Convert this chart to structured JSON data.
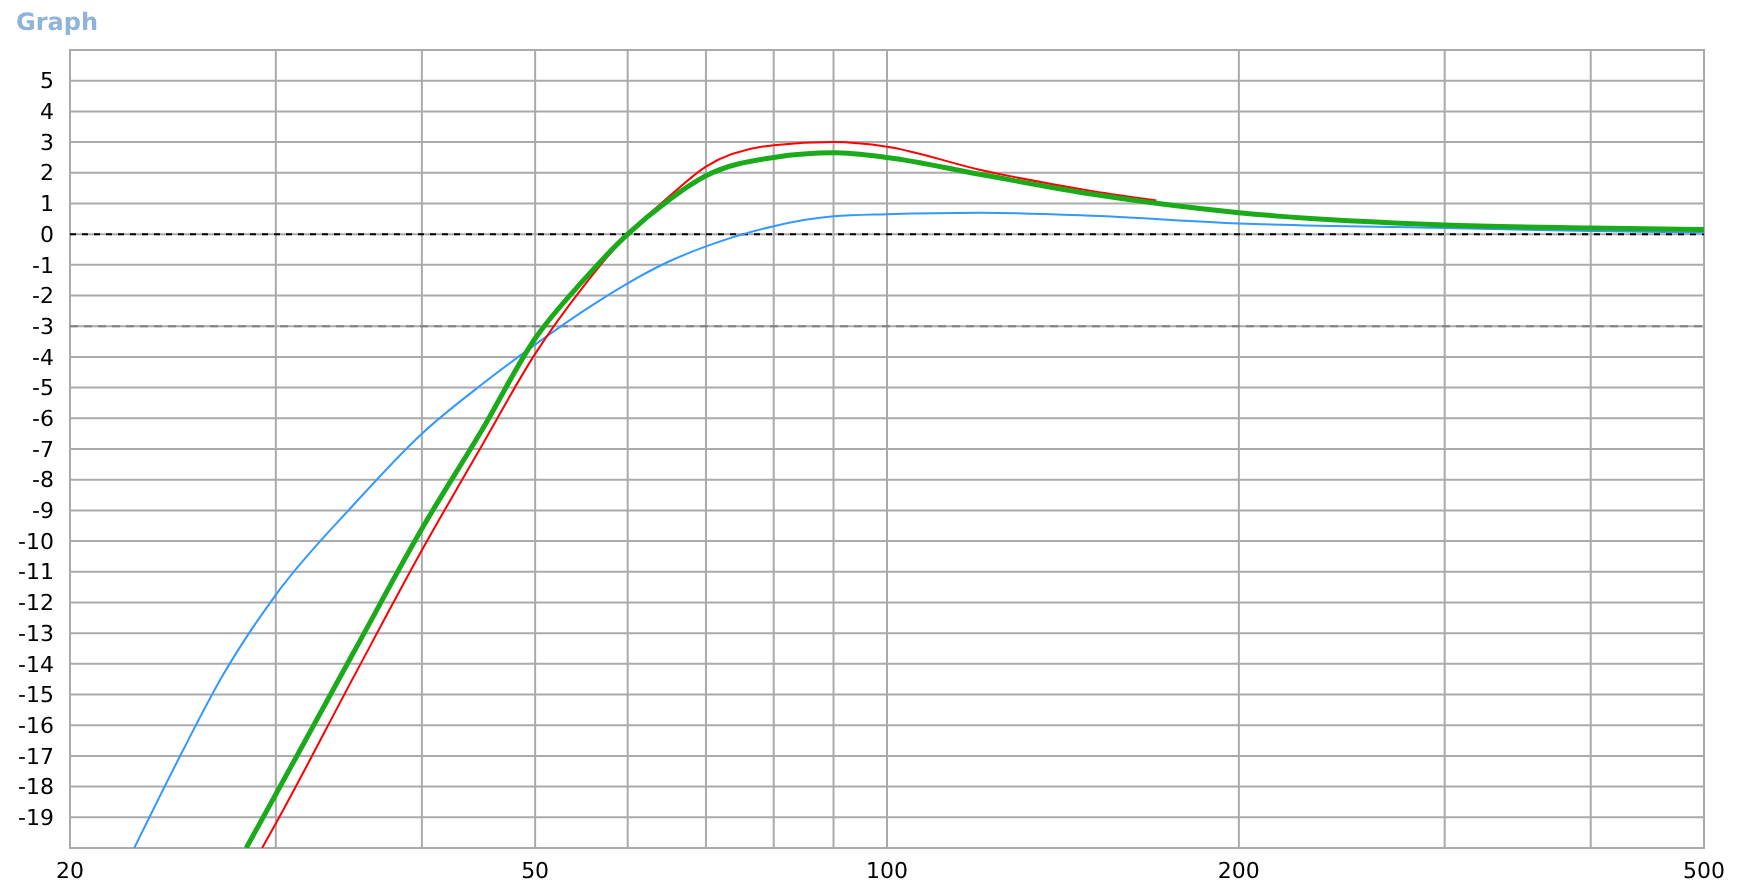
{
  "chart_data": {
    "type": "line",
    "title": "Graph",
    "log": "x",
    "grid": true,
    "line_style": "solid",
    "xlim": [
      20,
      500
    ],
    "ylim": [
      -20,
      6
    ],
    "xticks": [
      20,
      {
        "value": 30,
        "label": null
      },
      {
        "value": 40,
        "label": null
      },
      50,
      {
        "value": 60,
        "label": null
      },
      {
        "value": 70,
        "label": null
      },
      {
        "value": 80,
        "label": null
      },
      {
        "value": 90,
        "label": null
      },
      100,
      200,
      {
        "value": 300,
        "label": null
      },
      {
        "value": 400,
        "label": null
      },
      500
    ],
    "yticks": [
      -19,
      -18,
      -17,
      -16,
      -15,
      -14,
      -13,
      -12,
      -11,
      -10,
      -9,
      -8,
      -7,
      -6,
      -5,
      -4,
      -3,
      -2,
      -1,
      0,
      1,
      2,
      3,
      4,
      5
    ],
    "ref_lines": [
      {
        "axis": "y",
        "value": 0,
        "color": "#000000",
        "line_style": "dotted"
      },
      {
        "axis": "y",
        "value": -3,
        "color": "#808080",
        "line_style": "dashed"
      }
    ],
    "series": [
      {
        "color": "#3399ff",
        "x": [
          22.7,
          25,
          27,
          30,
          35,
          40,
          45,
          50,
          55,
          60,
          65,
          70,
          80,
          90,
          100,
          120,
          150,
          200,
          300,
          400,
          500
        ],
        "values": [
          -20,
          -16.8,
          -14.4,
          -11.75,
          -8.8,
          -6.5,
          -4.9,
          -3.6,
          -2.5,
          -1.6,
          -0.9,
          -0.4,
          0.26,
          0.58,
          0.65,
          0.7,
          0.6,
          0.35,
          0.2,
          0.1,
          0.05
        ]
      },
      {
        "color": "#ff0000",
        "x": [
          29.2,
          30,
          35,
          40,
          45,
          50,
          55,
          60,
          65,
          70,
          80,
          90,
          100,
          120,
          150,
          170
        ],
        "values": [
          -20,
          -19.2,
          -14.4,
          -10.3,
          -6.9,
          -3.9,
          -1.7,
          0,
          1.2,
          2.2,
          2.9,
          3.0,
          2.85,
          2.1,
          1.4,
          1.1
        ]
      },
      {
        "color": "#1aaa1a",
        "x": [
          28.3,
          30,
          35,
          40,
          45,
          50,
          55,
          60,
          65,
          70,
          80,
          90,
          100,
          120,
          150,
          200,
          300,
          400,
          500
        ],
        "values": [
          -20,
          -18.25,
          -13.6,
          -9.6,
          -6.4,
          -3.4,
          -1.5,
          0,
          1.1,
          1.9,
          2.5,
          2.65,
          2.5,
          1.95,
          1.3,
          0.7,
          0.3,
          0.2,
          0.15
        ]
      }
    ]
  }
}
